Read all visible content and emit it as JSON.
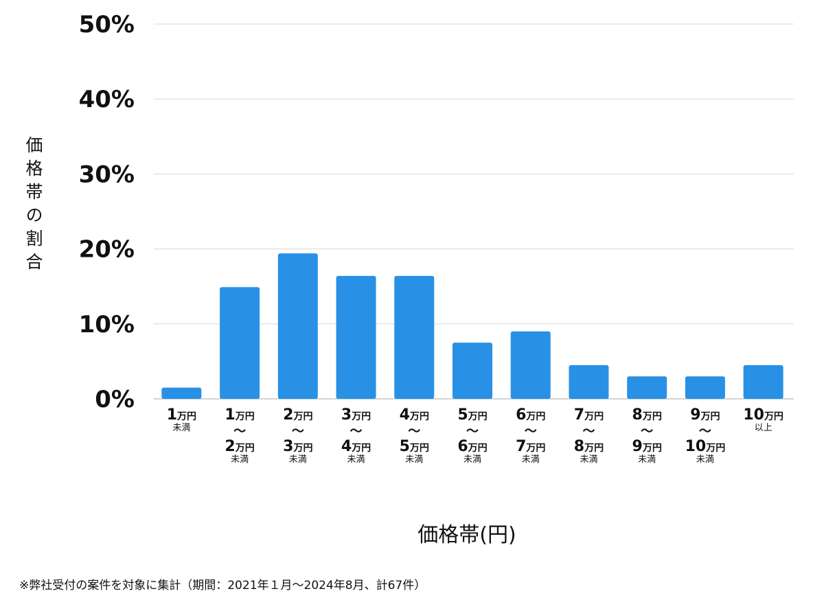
{
  "chart_data": {
    "type": "bar",
    "title": "",
    "xlabel": "価格帯(円)",
    "ylabel": "価格帯の割合",
    "ylim": [
      0,
      50
    ],
    "yticks": [
      "0%",
      "10%",
      "20%",
      "30%",
      "40%",
      "50%"
    ],
    "ytick_values": [
      0,
      10,
      20,
      30,
      40,
      50
    ],
    "grid": true,
    "bar_color": "#2891e6",
    "unit": "万円",
    "range_mark": "〜",
    "categories": [
      {
        "from": "1",
        "to": null,
        "suffix": "未満"
      },
      {
        "from": "1",
        "to": "2",
        "suffix": "未満"
      },
      {
        "from": "2",
        "to": "3",
        "suffix": "未満"
      },
      {
        "from": "3",
        "to": "4",
        "suffix": "未満"
      },
      {
        "from": "4",
        "to": "5",
        "suffix": "未満"
      },
      {
        "from": "5",
        "to": "6",
        "suffix": "未満"
      },
      {
        "from": "6",
        "to": "7",
        "suffix": "未満"
      },
      {
        "from": "7",
        "to": "8",
        "suffix": "未満"
      },
      {
        "from": "8",
        "to": "9",
        "suffix": "未満"
      },
      {
        "from": "9",
        "to": "10",
        "suffix": "未満"
      },
      {
        "from": "10",
        "to": null,
        "suffix": "以上"
      }
    ],
    "values": [
      1.5,
      14.9,
      19.4,
      16.4,
      16.4,
      7.5,
      9.0,
      4.5,
      3.0,
      3.0,
      4.5
    ]
  },
  "note": "※弊社受付の案件を対象に集計（期間：2021年１月〜2024年8月、計67件）"
}
